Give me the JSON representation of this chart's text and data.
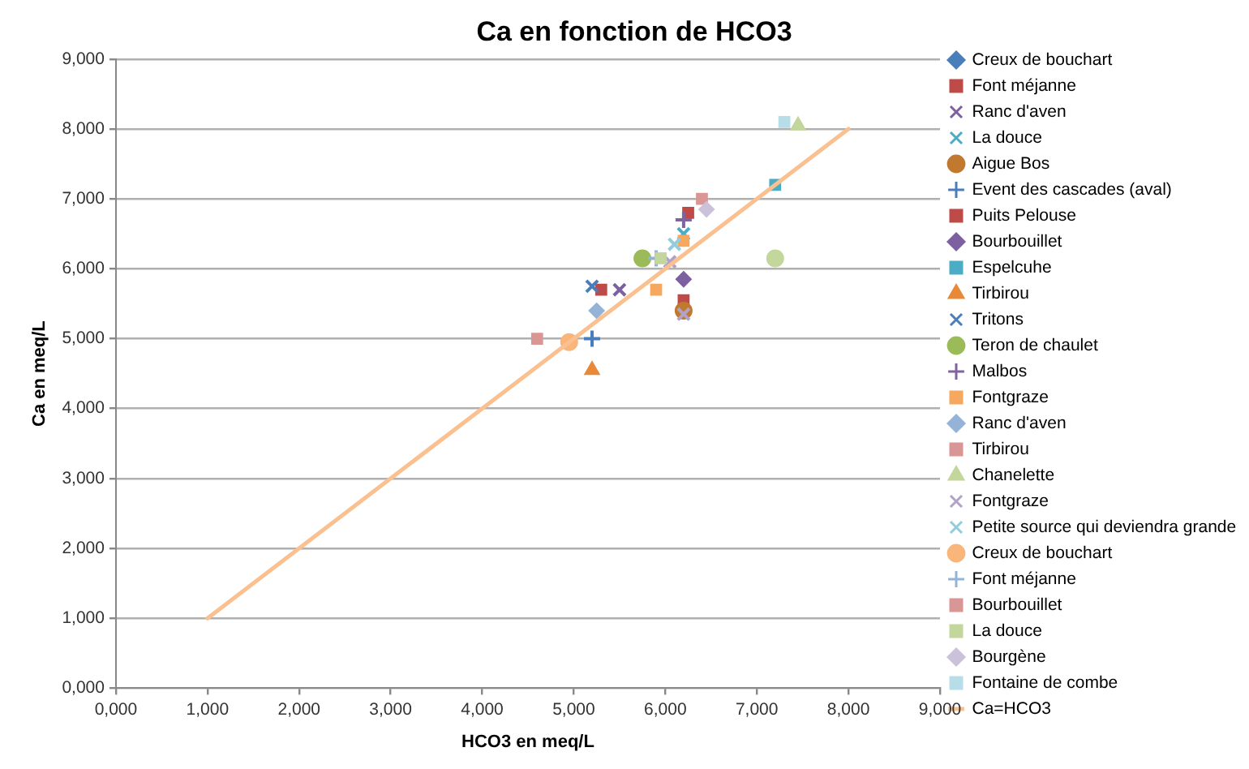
{
  "chart_data": {
    "type": "scatter",
    "title": "Ca en fonction de HCO3",
    "xlabel": "HCO3 en meq/L",
    "ylabel": "Ca en meq/L",
    "xlim": [
      0,
      9
    ],
    "ylim": [
      0,
      9
    ],
    "xticks": [
      {
        "value": 0,
        "label": "0,000"
      },
      {
        "value": 1,
        "label": "1,000"
      },
      {
        "value": 2,
        "label": "2,000"
      },
      {
        "value": 3,
        "label": "3,000"
      },
      {
        "value": 4,
        "label": "4,000"
      },
      {
        "value": 5,
        "label": "5,000"
      },
      {
        "value": 6,
        "label": "6,000"
      },
      {
        "value": 7,
        "label": "7,000"
      },
      {
        "value": 8,
        "label": "8,000"
      },
      {
        "value": 9,
        "label": "9,000"
      }
    ],
    "yticks": [
      {
        "value": 0,
        "label": "0,000"
      },
      {
        "value": 1,
        "label": "1,000"
      },
      {
        "value": 2,
        "label": "2,000"
      },
      {
        "value": 3,
        "label": "3,000"
      },
      {
        "value": 4,
        "label": "4,000"
      },
      {
        "value": 5,
        "label": "5,000"
      },
      {
        "value": 6,
        "label": "6,000"
      },
      {
        "value": 7,
        "label": "7,000"
      },
      {
        "value": 8,
        "label": "8,000"
      },
      {
        "value": 9,
        "label": "9,000"
      }
    ],
    "grid": "y",
    "legend": "right",
    "series": [
      {
        "name": "Creux de bouchart",
        "color": "#4a7ebb",
        "marker": "diamond",
        "x": [
          null
        ],
        "values": [
          null
        ]
      },
      {
        "name": "Font méjanne",
        "color": "#be4b48",
        "marker": "square",
        "x": [
          6.2
        ],
        "values": [
          5.55
        ]
      },
      {
        "name": "Ranc d'aven",
        "color": "#7d60a0",
        "marker": "cross",
        "x": [
          5.5
        ],
        "values": [
          5.7
        ]
      },
      {
        "name": "La douce",
        "color": "#4bacc6",
        "marker": "cross",
        "x": [
          6.2
        ],
        "values": [
          6.5
        ]
      },
      {
        "name": "Aigue Bos",
        "color": "#c0792f",
        "marker": "circle",
        "x": [
          6.2
        ],
        "values": [
          5.4
        ]
      },
      {
        "name": "Event des cascades (aval)",
        "color": "#4a7ebb",
        "marker": "plus",
        "x": [
          5.2
        ],
        "values": [
          5.0
        ]
      },
      {
        "name": "Puits Pelouse",
        "color": "#be4b48",
        "marker": "square",
        "x": [
          5.3,
          6.25
        ],
        "values": [
          5.7,
          6.8
        ]
      },
      {
        "name": "Bourbouillet",
        "color": "#7d60a0",
        "marker": "diamond",
        "x": [
          6.2
        ],
        "values": [
          5.85
        ]
      },
      {
        "name": "Espelcuhe",
        "color": "#4bacc6",
        "marker": "square",
        "x": [
          7.2
        ],
        "values": [
          7.2
        ]
      },
      {
        "name": "Tirbirou",
        "color": "#e8893a",
        "marker": "triangle",
        "x": [
          5.2
        ],
        "values": [
          4.55
        ]
      },
      {
        "name": "Tritons",
        "color": "#4a7ebb",
        "marker": "cross",
        "x": [
          5.2
        ],
        "values": [
          5.75
        ]
      },
      {
        "name": "Teron de chaulet",
        "color": "#9bbb59",
        "colors": [
          "#9bbb59",
          "#c3d69b"
        ],
        "marker": "circle",
        "x": [
          5.75,
          7.2
        ],
        "values": [
          6.15,
          6.15
        ]
      },
      {
        "name": "Malbos",
        "color": "#8064a2",
        "marker": "plus",
        "x": [
          6.2
        ],
        "values": [
          6.7
        ]
      },
      {
        "name": "Fontgraze",
        "color": "#f5a85e",
        "marker": "square",
        "x": [
          5.9,
          6.2
        ],
        "values": [
          5.7,
          6.4
        ]
      },
      {
        "name": "Ranc d'aven",
        "color": "#95b3d7",
        "marker": "diamond",
        "x": [
          5.25
        ],
        "values": [
          5.4
        ]
      },
      {
        "name": "Tirbirou",
        "color": "#d99694",
        "marker": "square",
        "x": [
          4.6
        ],
        "values": [
          5.0
        ]
      },
      {
        "name": "Chanelette",
        "color": "#c3d69b",
        "marker": "triangle",
        "x": [
          7.45
        ],
        "values": [
          8.05
        ]
      },
      {
        "name": "Fontgraze",
        "color": "#b3a2c7",
        "marker": "cross",
        "x": [
          6.05,
          6.2
        ],
        "values": [
          6.1,
          5.35
        ]
      },
      {
        "name": "Petite source qui deviendra grande",
        "color": "#93cddd",
        "marker": "cross",
        "x": [
          6.1
        ],
        "values": [
          6.35
        ]
      },
      {
        "name": "Creux de bouchart",
        "color": "#fab57a",
        "marker": "circle",
        "x": [
          4.95
        ],
        "values": [
          4.95
        ]
      },
      {
        "name": "Font méjanne",
        "color": "#95b3d7",
        "marker": "plus",
        "x": [
          5.9
        ],
        "values": [
          6.15
        ]
      },
      {
        "name": "Bourbouillet",
        "color": "#d99694",
        "marker": "square",
        "x": [
          6.4
        ],
        "values": [
          7.0
        ]
      },
      {
        "name": "La douce",
        "color": "#c3d69b",
        "marker": "square",
        "x": [
          5.95
        ],
        "values": [
          6.15
        ]
      },
      {
        "name": "Bourgène",
        "color": "#ccc1da",
        "marker": "diamond",
        "x": [
          6.45
        ],
        "values": [
          6.85
        ]
      },
      {
        "name": "Fontaine de combe",
        "color": "#b7dee8",
        "marker": "square",
        "x": [
          7.3
        ],
        "values": [
          8.1
        ]
      },
      {
        "name": "Ca=HCO3",
        "type": "line",
        "color": "#fac090",
        "marker": "none",
        "x": [
          1,
          8
        ],
        "values": [
          1,
          8
        ]
      }
    ]
  }
}
